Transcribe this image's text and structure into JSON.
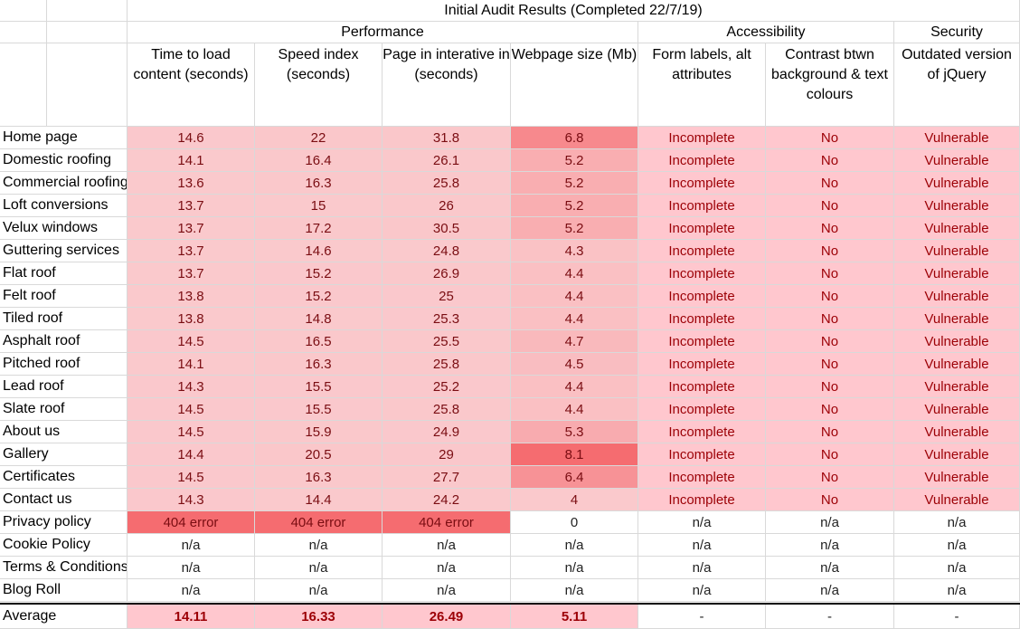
{
  "title": "Initial Audit Results (Completed 22/7/19)",
  "groups": [
    {
      "label": "Performance",
      "start": 0,
      "span": 4
    },
    {
      "label": "Accessibility",
      "start": 4,
      "span": 2
    },
    {
      "label": "Security",
      "start": 6,
      "span": 1
    }
  ],
  "columns": [
    "Time to load content (seconds)",
    "Speed index (seconds)",
    "Page in interative in (seconds)",
    "Webpage size (Mb)",
    "Form labels, alt attributes",
    "Contrast btwn background & text colours",
    "Outdated version of jQuery"
  ],
  "rows": [
    {
      "page": "Home page",
      "values": [
        "14.6",
        "22",
        "31.8",
        "6.8",
        "Incomplete",
        "No",
        "Vulnerable"
      ]
    },
    {
      "page": "Domestic roofing",
      "values": [
        "14.1",
        "16.4",
        "26.1",
        "5.2",
        "Incomplete",
        "No",
        "Vulnerable"
      ]
    },
    {
      "page": "Commercial roofing",
      "values": [
        "13.6",
        "16.3",
        "25.8",
        "5.2",
        "Incomplete",
        "No",
        "Vulnerable"
      ]
    },
    {
      "page": "Loft conversions",
      "values": [
        "13.7",
        "15",
        "26",
        "5.2",
        "Incomplete",
        "No",
        "Vulnerable"
      ]
    },
    {
      "page": "Velux windows",
      "values": [
        "13.7",
        "17.2",
        "30.5",
        "5.2",
        "Incomplete",
        "No",
        "Vulnerable"
      ]
    },
    {
      "page": "Guttering services",
      "values": [
        "13.7",
        "14.6",
        "24.8",
        "4.3",
        "Incomplete",
        "No",
        "Vulnerable"
      ]
    },
    {
      "page": "Flat roof",
      "values": [
        "13.7",
        "15.2",
        "26.9",
        "4.4",
        "Incomplete",
        "No",
        "Vulnerable"
      ]
    },
    {
      "page": "Felt roof",
      "values": [
        "13.8",
        "15.2",
        "25",
        "4.4",
        "Incomplete",
        "No",
        "Vulnerable"
      ]
    },
    {
      "page": "Tiled roof",
      "values": [
        "13.8",
        "14.8",
        "25.3",
        "4.4",
        "Incomplete",
        "No",
        "Vulnerable"
      ]
    },
    {
      "page": "Asphalt roof",
      "values": [
        "14.5",
        "16.5",
        "25.5",
        "4.7",
        "Incomplete",
        "No",
        "Vulnerable"
      ]
    },
    {
      "page": "Pitched roof",
      "values": [
        "14.1",
        "16.3",
        "25.8",
        "4.5",
        "Incomplete",
        "No",
        "Vulnerable"
      ]
    },
    {
      "page": "Lead roof",
      "values": [
        "14.3",
        "15.5",
        "25.2",
        "4.4",
        "Incomplete",
        "No",
        "Vulnerable"
      ]
    },
    {
      "page": "Slate roof",
      "values": [
        "14.5",
        "15.5",
        "25.8",
        "4.4",
        "Incomplete",
        "No",
        "Vulnerable"
      ]
    },
    {
      "page": "About us",
      "values": [
        "14.5",
        "15.9",
        "24.9",
        "5.3",
        "Incomplete",
        "No",
        "Vulnerable"
      ]
    },
    {
      "page": "Gallery",
      "values": [
        "14.4",
        "20.5",
        "29",
        "8.1",
        "Incomplete",
        "No",
        "Vulnerable"
      ]
    },
    {
      "page": "Certificates",
      "values": [
        "14.5",
        "16.3",
        "27.7",
        "6.4",
        "Incomplete",
        "No",
        "Vulnerable"
      ]
    },
    {
      "page": "Contact us",
      "values": [
        "14.3",
        "14.4",
        "24.2",
        "4",
        "Incomplete",
        "No",
        "Vulnerable"
      ]
    },
    {
      "page": "Privacy policy",
      "values": [
        "404 error",
        "404 error",
        "404 error",
        "0",
        "n/a",
        "n/a",
        "n/a"
      ]
    },
    {
      "page": "Cookie Policy",
      "values": [
        "n/a",
        "n/a",
        "n/a",
        "n/a",
        "n/a",
        "n/a",
        "n/a"
      ]
    },
    {
      "page": "Terms & Conditions",
      "values": [
        "n/a",
        "n/a",
        "n/a",
        "n/a",
        "n/a",
        "n/a",
        "n/a"
      ]
    },
    {
      "page": "Blog Roll",
      "values": [
        "n/a",
        "n/a",
        "n/a",
        "n/a",
        "n/a",
        "n/a",
        "n/a"
      ]
    }
  ],
  "average": {
    "label": "Average",
    "values": [
      "14.11",
      "16.33",
      "26.49",
      "5.11",
      "-",
      "-",
      "-"
    ]
  },
  "colors": {
    "scale_low": "#fbd9dc",
    "scale_high": "#f56c70",
    "flag_fill": "#ffc7ce",
    "flag_text": "#9c0006",
    "grid": "#d9d9d9"
  }
}
